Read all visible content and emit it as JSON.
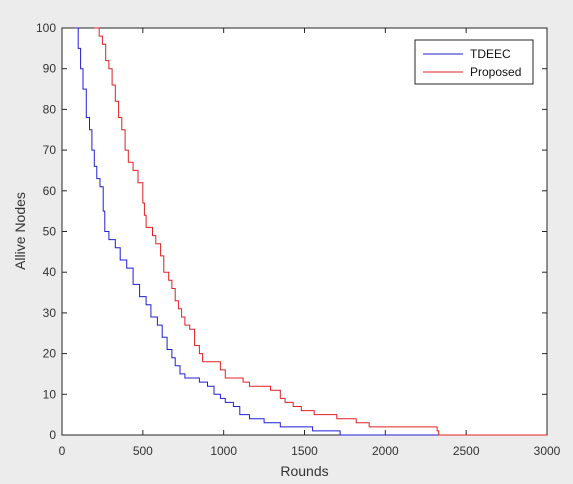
{
  "chart_data": {
    "type": "line",
    "title": "",
    "xlabel": "Rounds",
    "ylabel": "Allive Nodes",
    "xlim": [
      0,
      3000
    ],
    "ylim": [
      0,
      100
    ],
    "xticks": [
      0,
      500,
      1000,
      1500,
      2000,
      2500,
      3000
    ],
    "yticks": [
      0,
      10,
      20,
      30,
      40,
      50,
      60,
      70,
      80,
      90,
      100
    ],
    "grid": false,
    "legend_position": "top-right",
    "series": [
      {
        "name": "TDEEC",
        "color": "#1f1fd6",
        "points": [
          [
            80,
            100
          ],
          [
            100,
            95
          ],
          [
            115,
            90
          ],
          [
            130,
            85
          ],
          [
            150,
            78
          ],
          [
            170,
            75
          ],
          [
            185,
            70
          ],
          [
            200,
            66
          ],
          [
            215,
            63
          ],
          [
            235,
            61
          ],
          [
            255,
            55
          ],
          [
            265,
            50
          ],
          [
            290,
            48
          ],
          [
            330,
            46
          ],
          [
            360,
            43
          ],
          [
            400,
            41
          ],
          [
            440,
            37
          ],
          [
            480,
            34
          ],
          [
            520,
            32
          ],
          [
            550,
            29
          ],
          [
            590,
            27
          ],
          [
            620,
            24
          ],
          [
            650,
            21
          ],
          [
            680,
            19
          ],
          [
            700,
            17
          ],
          [
            730,
            15
          ],
          [
            760,
            14
          ],
          [
            850,
            13
          ],
          [
            900,
            12
          ],
          [
            940,
            10
          ],
          [
            980,
            9
          ],
          [
            1010,
            8
          ],
          [
            1060,
            7
          ],
          [
            1100,
            5
          ],
          [
            1160,
            4
          ],
          [
            1250,
            3
          ],
          [
            1350,
            2
          ],
          [
            1550,
            1
          ],
          [
            1720,
            0
          ],
          [
            3000,
            0
          ]
        ]
      },
      {
        "name": "Proposed",
        "color": "#e02020",
        "points": [
          [
            200,
            100
          ],
          [
            230,
            98
          ],
          [
            250,
            96
          ],
          [
            270,
            92
          ],
          [
            290,
            90
          ],
          [
            310,
            86
          ],
          [
            330,
            82
          ],
          [
            350,
            78
          ],
          [
            370,
            75
          ],
          [
            390,
            70
          ],
          [
            410,
            67
          ],
          [
            440,
            65
          ],
          [
            470,
            62
          ],
          [
            500,
            57
          ],
          [
            510,
            54
          ],
          [
            520,
            51
          ],
          [
            560,
            49
          ],
          [
            580,
            47
          ],
          [
            610,
            44
          ],
          [
            630,
            40
          ],
          [
            660,
            38
          ],
          [
            680,
            36
          ],
          [
            700,
            33
          ],
          [
            720,
            31
          ],
          [
            740,
            29
          ],
          [
            760,
            27
          ],
          [
            790,
            26
          ],
          [
            820,
            22
          ],
          [
            850,
            20
          ],
          [
            870,
            18
          ],
          [
            980,
            16
          ],
          [
            1010,
            14
          ],
          [
            1120,
            13
          ],
          [
            1160,
            12
          ],
          [
            1290,
            11
          ],
          [
            1350,
            9
          ],
          [
            1380,
            8
          ],
          [
            1430,
            7
          ],
          [
            1480,
            6
          ],
          [
            1560,
            5
          ],
          [
            1700,
            4
          ],
          [
            1820,
            3
          ],
          [
            1900,
            2
          ],
          [
            2320,
            1
          ],
          [
            2330,
            0
          ],
          [
            3000,
            0
          ]
        ]
      }
    ]
  }
}
